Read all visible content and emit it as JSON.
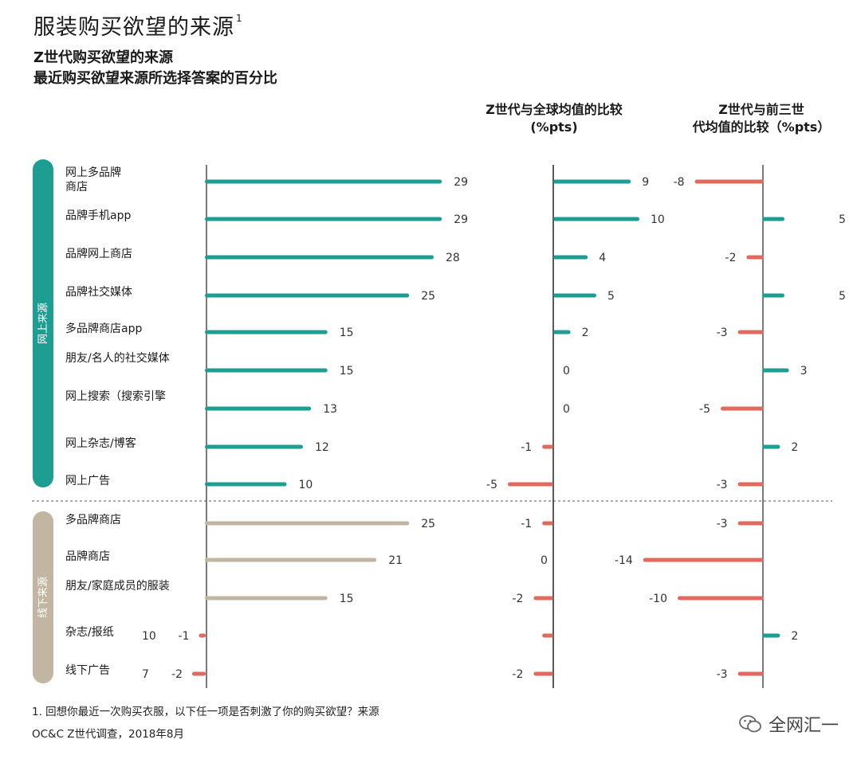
{
  "title": "服装购买欲望的来源",
  "title_sup": "1",
  "subtitle_line1": "Z世代购买欲望的来源",
  "subtitle_line2": "最近购买欲望来源所选择答案的百分比",
  "col2_header_line1": "Z世代与全球均值的比较",
  "col2_header_line2": "(%pts)",
  "col3_header_line1": "Z世代与前三世",
  "col3_header_line2": "代均值的比较（%pts）",
  "footnote1": "1. 回想你最近一次购买衣服，以下任一项是否刺激了你的购买欲望？来源",
  "footnote2": "OC&C Z世代调查，2018年8月",
  "watermark": "全网汇一",
  "colors": {
    "online": "#1e9e92",
    "offline": "#c2b6a2",
    "negative": "#e06a5e",
    "axis": "#222222"
  },
  "chart_data": {
    "type": "bar",
    "orientation": "horizontal",
    "groups": [
      {
        "name": "网上来源",
        "items": [
          "网上多品牌商店",
          "品牌手机app",
          "品牌网上商店",
          "品牌社交媒体",
          "多品牌商店app",
          "朋友/名人的社交媒体",
          "网上搜索（搜索引擎",
          "网上杂志/博客",
          "网上广告"
        ]
      },
      {
        "name": "线下来源",
        "items": [
          "多品牌商店",
          "品牌商店",
          "朋友/家庭成员的服装",
          "杂志/报纸",
          "线下广告"
        ]
      }
    ],
    "rows": [
      {
        "label": "网上多品牌商店",
        "group": "online",
        "share": 29,
        "vs_global": 9,
        "vs_prev": -8
      },
      {
        "label": "品牌手机app",
        "group": "online",
        "share": 29,
        "vs_global": 10,
        "vs_prev": 5
      },
      {
        "label": "品牌网上商店",
        "group": "online",
        "share": 28,
        "vs_global": 4,
        "vs_prev": -2
      },
      {
        "label": "品牌社交媒体",
        "group": "online",
        "share": 25,
        "vs_global": 5,
        "vs_prev": 5
      },
      {
        "label": "多品牌商店app",
        "group": "online",
        "share": 15,
        "vs_global": 2,
        "vs_prev": -3
      },
      {
        "label": "朋友/名人的社交媒体",
        "group": "online",
        "share": 15,
        "vs_global": 0,
        "vs_prev": 3
      },
      {
        "label": "网上搜索（搜索引擎",
        "group": "online",
        "share": 13,
        "vs_global": 0,
        "vs_prev": -5
      },
      {
        "label": "网上杂志/博客",
        "group": "online",
        "share": 12,
        "vs_global": -1,
        "vs_prev": 2
      },
      {
        "label": "网上广告",
        "group": "online",
        "share": 10,
        "vs_global": -5,
        "vs_prev": -3
      },
      {
        "label": "多品牌商店",
        "group": "offline",
        "share": 25,
        "vs_global": -1,
        "vs_prev": -3
      },
      {
        "label": "品牌商店",
        "group": "offline",
        "share": 21,
        "vs_global": 0,
        "vs_prev": -14
      },
      {
        "label": "朋友/家庭成员的服装",
        "group": "offline",
        "share": 15,
        "vs_global": -2,
        "vs_prev": -10
      },
      {
        "label": "杂志/报纸",
        "group": "offline",
        "share": 10,
        "vs_global": -1,
        "vs_prev": 2
      },
      {
        "label": "线下广告",
        "group": "offline",
        "share": 7,
        "vs_global": -2,
        "vs_prev": -3
      }
    ]
  }
}
